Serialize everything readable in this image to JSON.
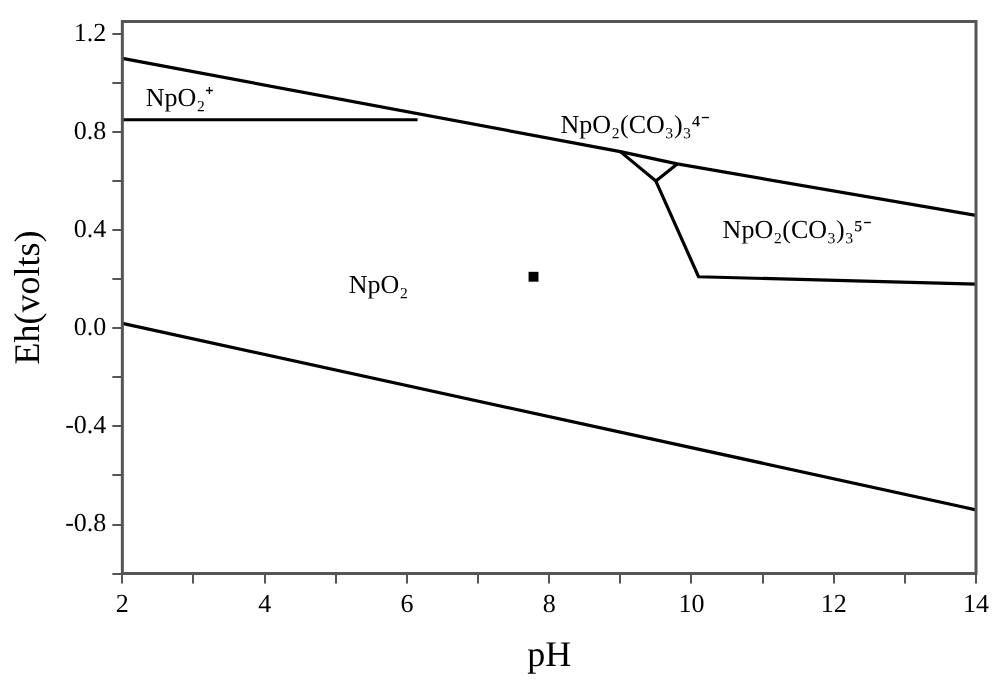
{
  "chart_data": {
    "type": "line",
    "xlabel": "pH",
    "ylabel": "Eh(volts)",
    "xlim": [
      2,
      14
    ],
    "xticks": [
      2,
      {
        "value": 3,
        "label": null
      },
      4,
      {
        "value": 5,
        "label": null
      },
      6,
      {
        "value": 7,
        "label": null
      },
      8,
      {
        "value": 9,
        "label": null
      },
      10,
      {
        "value": 11,
        "label": null
      },
      12,
      {
        "value": 13,
        "label": null
      },
      14
    ],
    "ylim": [
      -1.0,
      1.25
    ],
    "yticks": [
      {
        "value": -1.0,
        "label": null
      },
      {
        "value": -0.8,
        "label": "-0.8"
      },
      {
        "value": -0.6,
        "label": null
      },
      {
        "value": -0.4,
        "label": "-0.4"
      },
      {
        "value": -0.2,
        "label": null
      },
      {
        "value": 0,
        "label": "0.0"
      },
      {
        "value": 0.2,
        "label": null
      },
      {
        "value": 0.4,
        "label": "0.4"
      },
      {
        "value": 0.6,
        "label": null
      },
      {
        "value": 0.8,
        "label": "0.8"
      },
      {
        "value": 1.0,
        "label": null
      },
      {
        "value": 1.2,
        "label": "1.2"
      }
    ],
    "grid": false,
    "legend": false,
    "series": [
      {
        "color": "#000000",
        "x": [
          2,
          9.0,
          9.8,
          14
        ],
        "values": [
          1.1,
          0.72,
          0.67,
          0.46
        ]
      },
      {
        "color": "#000000",
        "x": [
          2,
          6.15
        ],
        "values": [
          0.85,
          0.85
        ]
      },
      {
        "color": "#000000",
        "x": [
          9.0,
          9.5,
          9.8
        ],
        "values": [
          0.72,
          0.6,
          0.67
        ]
      },
      {
        "color": "#000000",
        "x": [
          9.5,
          10.1,
          14
        ],
        "values": [
          0.6,
          0.21,
          0.18
        ]
      },
      {
        "color": "#000000",
        "x": [
          2,
          14
        ],
        "values": [
          0.02,
          -0.74
        ]
      },
      {
        "type": "scatter",
        "color": "#000000",
        "marker": "square",
        "x": [
          7.78
        ],
        "values": [
          0.21
        ]
      }
    ],
    "annotations": [
      "NpO₂⁺",
      "NpO₂",
      "NpO₂(CO₃)₃⁴⁻",
      "NpO₂(CO₃)₃⁵⁻"
    ]
  }
}
